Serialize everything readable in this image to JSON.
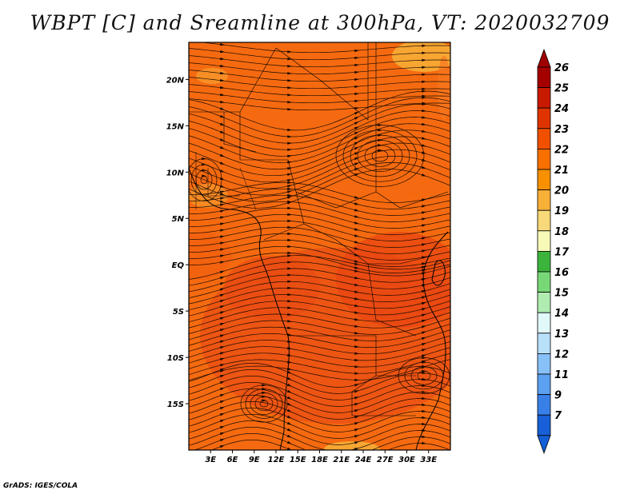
{
  "title": "WBPT [C] and Sreamline at 300hPa, VT: 2020032709",
  "credit": "GrADS: IGES/COLA",
  "map": {
    "region": "Africa",
    "lon_range": [
      0,
      36
    ],
    "lat_range": [
      -20,
      24
    ],
    "lon_ticks": [
      "3E",
      "6E",
      "9E",
      "12E",
      "15E",
      "18E",
      "21E",
      "24E",
      "27E",
      "30E",
      "33E"
    ],
    "lat_ticks": [
      "20N",
      "15N",
      "10N",
      "5N",
      "EQ",
      "5S",
      "10S",
      "15S"
    ],
    "fields": {
      "shading": "wet-bulb potential temperature",
      "overlay": "streamlines",
      "level": "300hPa"
    }
  },
  "colorbar": {
    "labels": [
      "26",
      "25",
      "24",
      "23",
      "22",
      "21",
      "20",
      "19",
      "18",
      "17",
      "16",
      "15",
      "14",
      "13",
      "12",
      "11",
      "9",
      "7"
    ],
    "colors": [
      "#a50000",
      "#c81a00",
      "#e03400",
      "#f05000",
      "#f87000",
      "#f89000",
      "#f8b038",
      "#f8d878",
      "#f8f8b8",
      "#3cb43c",
      "#78d878",
      "#b0ecb0",
      "#e0f8f8",
      "#b8e0f8",
      "#88c0f8",
      "#5ca0f0",
      "#3880e8",
      "#1860d8"
    ],
    "arrow_top": "#a00000",
    "arrow_bottom": "#1460d8"
  }
}
